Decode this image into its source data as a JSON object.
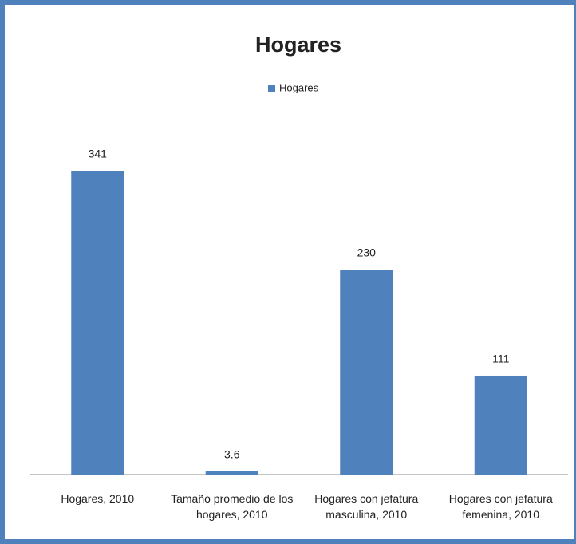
{
  "chart_data": {
    "type": "bar",
    "title": "Hogares",
    "categories": [
      "Hogares, 2010",
      "Tamaño promedio de los hogares, 2010",
      "Hogares con jefatura masculina, 2010",
      "Hogares con jefatura femenina, 2010"
    ],
    "series": [
      {
        "name": "Hogares",
        "color": "#4f81bd",
        "values": [
          341,
          3.6,
          230,
          111
        ]
      }
    ],
    "legend": "top"
  }
}
